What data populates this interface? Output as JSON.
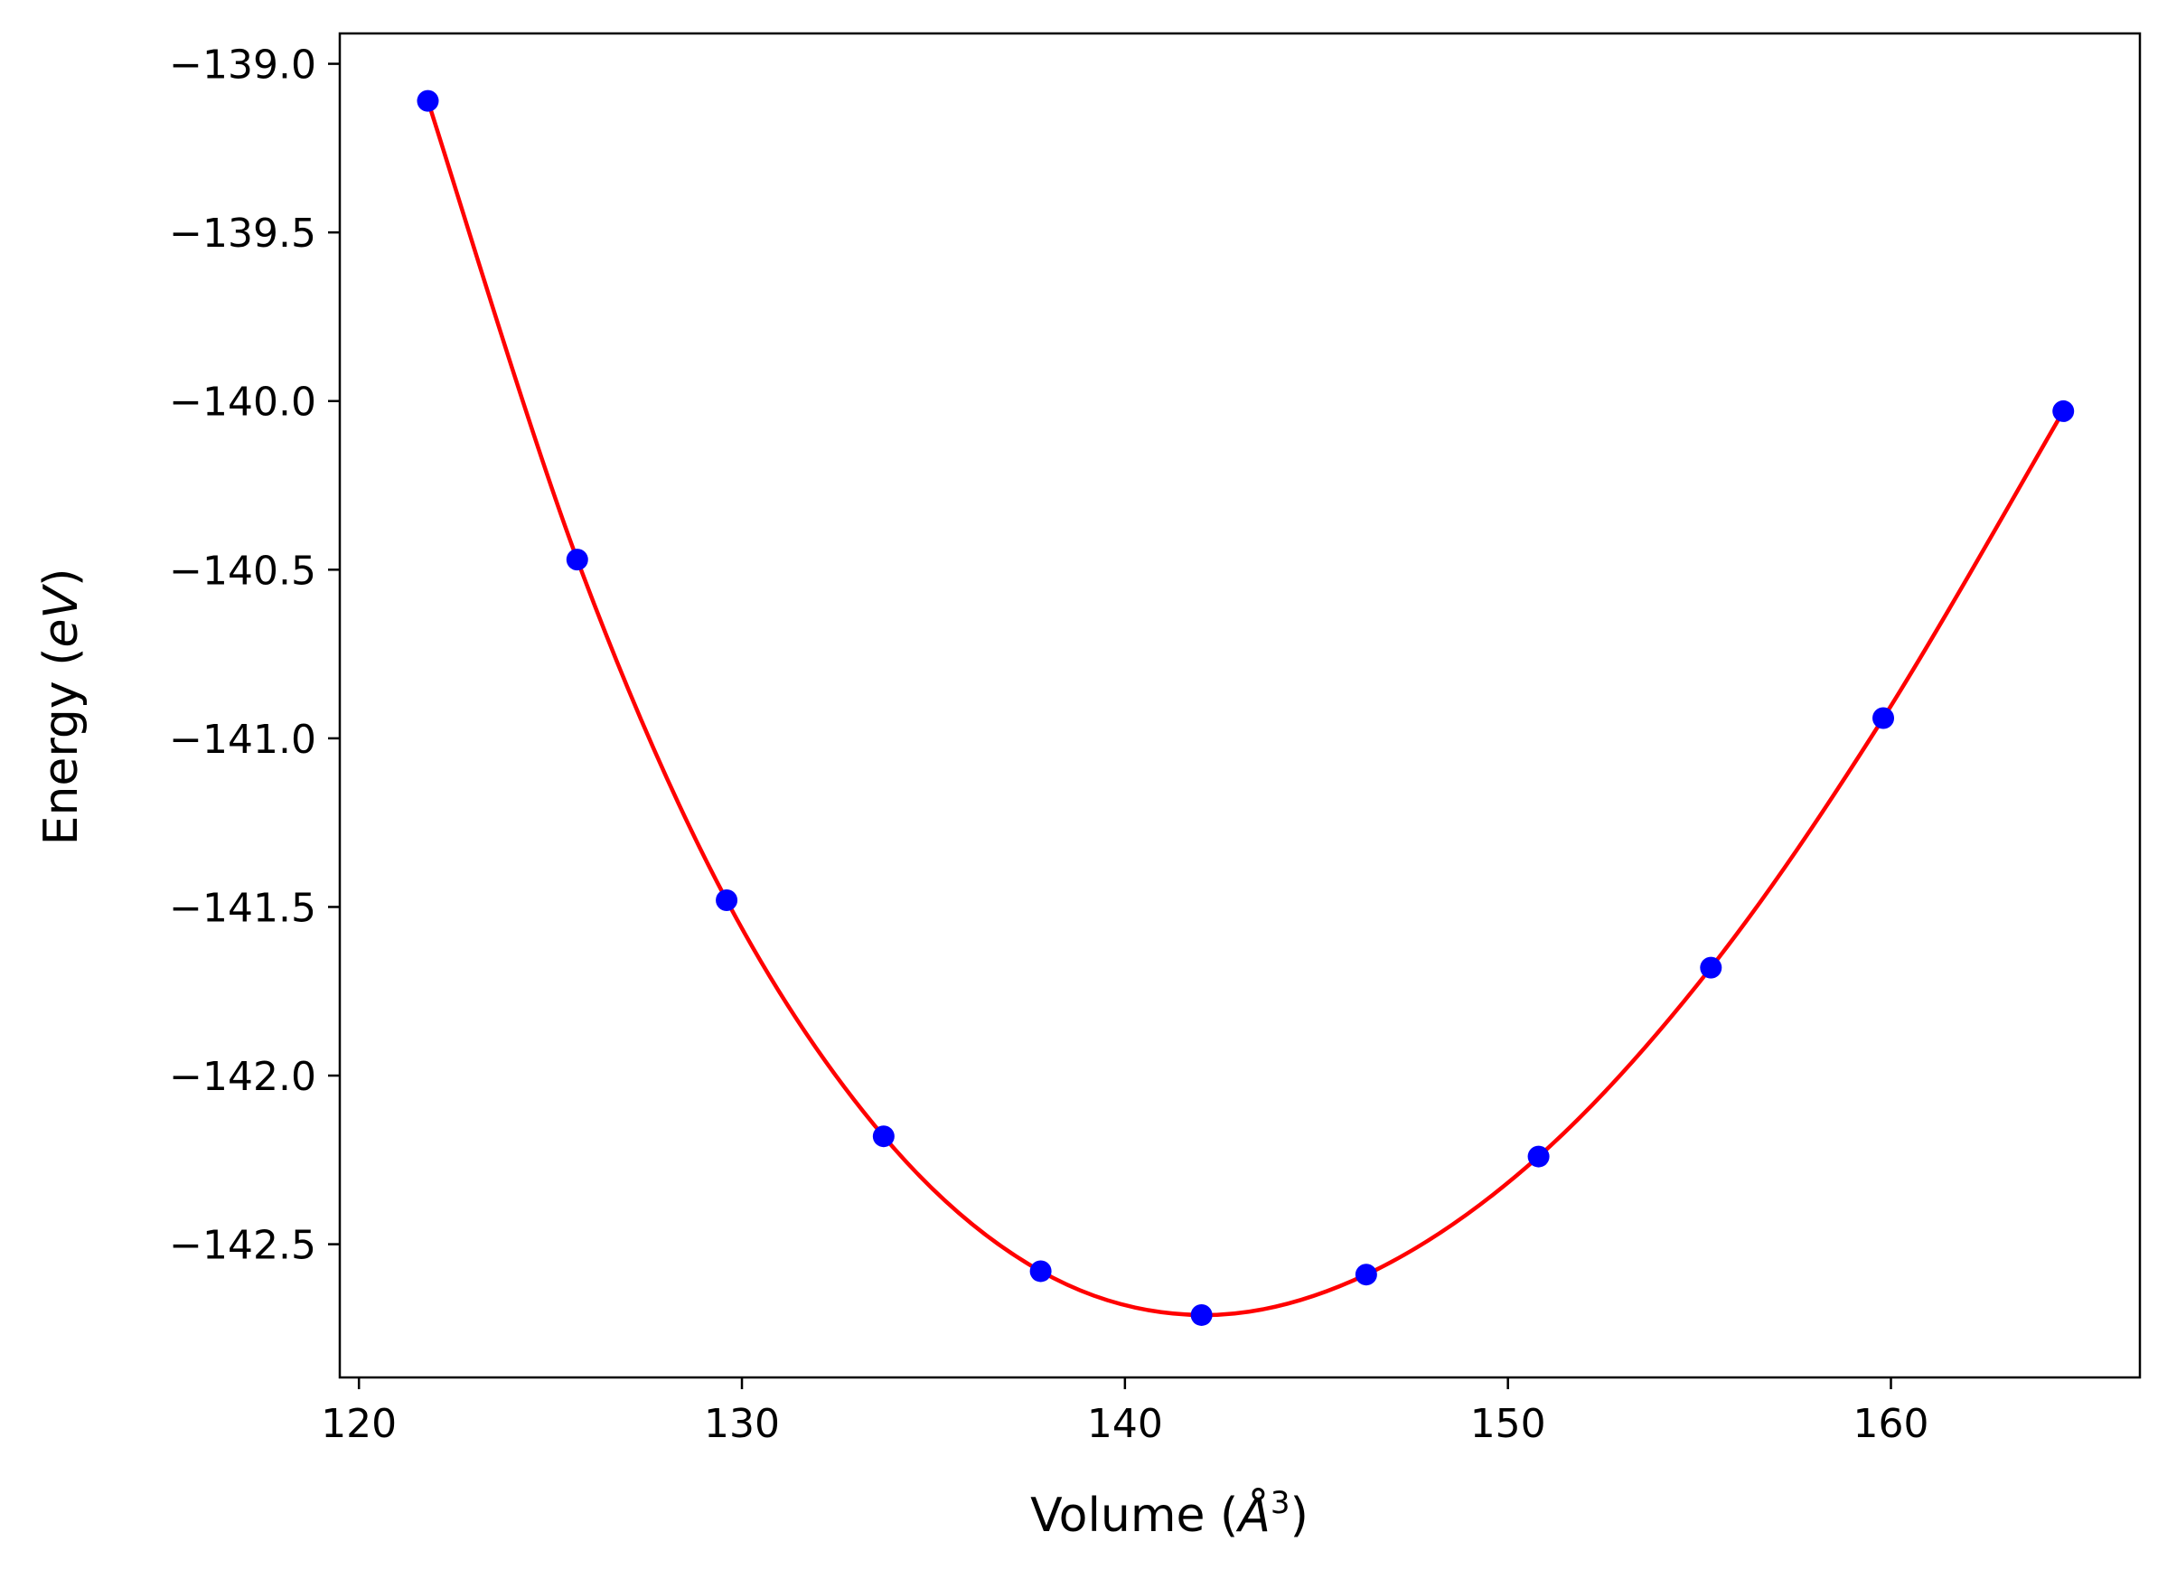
{
  "chart_data": {
    "type": "scatter",
    "title": "",
    "xlabel": "Volume (",
    "xlabel_unit_base": "Å",
    "xlabel_unit_sup": "3",
    "xlabel_close": ")",
    "ylabel": "Energy (",
    "ylabel_unit": "eV",
    "ylabel_close": ")",
    "xlim": [
      119.5,
      166.5
    ],
    "ylim": [
      -142.895,
      -138.91
    ],
    "xticks": [
      120,
      130,
      140,
      150,
      160
    ],
    "xtick_labels": [
      "120",
      "130",
      "140",
      "150",
      "160"
    ],
    "yticks": [
      -139.0,
      -139.5,
      -140.0,
      -140.5,
      -141.0,
      -141.5,
      -142.0,
      -142.5
    ],
    "ytick_labels": [
      "−139.0",
      "−139.5",
      "−140.0",
      "−140.5",
      "−141.0",
      "−141.5",
      "−142.0",
      "−142.5"
    ],
    "grid": false,
    "series": [
      {
        "kind": "points",
        "color": "#0000ff",
        "x": [
          121.8,
          125.7,
          129.6,
          133.7,
          137.8,
          142.0,
          146.3,
          150.8,
          155.3,
          159.8,
          164.5
        ],
        "y": [
          -139.11,
          -140.47,
          -141.48,
          -142.18,
          -142.58,
          -142.71,
          -142.59,
          -142.24,
          -141.68,
          -140.94,
          -140.03
        ]
      },
      {
        "kind": "fit-line",
        "color": "#ff0000",
        "x": [
          121.8,
          125.7,
          129.6,
          133.7,
          137.8,
          142.0,
          146.3,
          150.8,
          155.3,
          159.8,
          164.5
        ],
        "y": [
          -139.11,
          -140.47,
          -141.48,
          -142.18,
          -142.58,
          -142.71,
          -142.59,
          -142.24,
          -141.68,
          -140.94,
          -140.03
        ]
      }
    ]
  }
}
